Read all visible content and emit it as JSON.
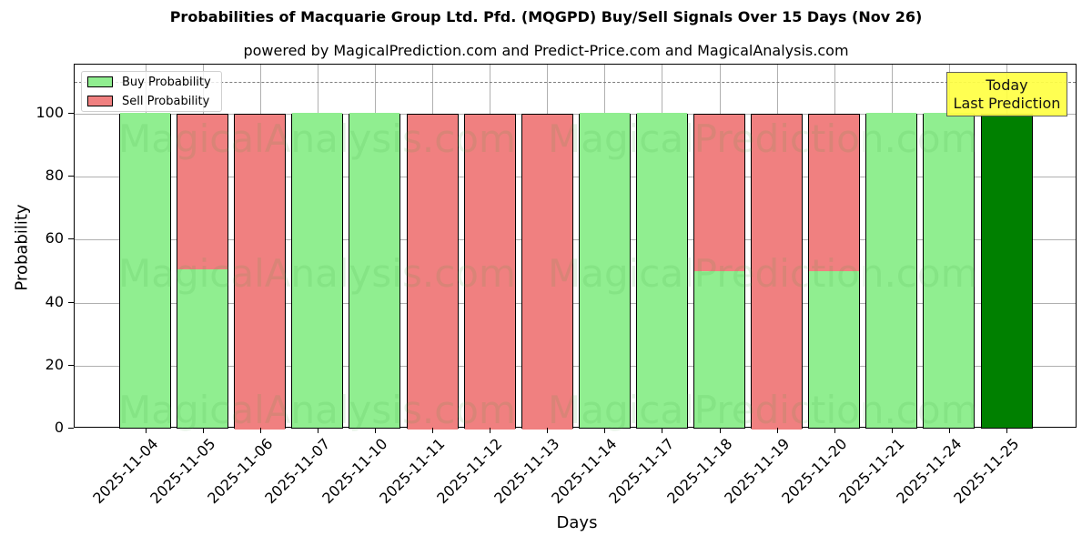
{
  "header": {
    "title": "Probabilities of Macquarie Group Ltd. Pfd. (MQGPD) Buy/Sell Signals Over 15 Days (Nov 26)",
    "subtitle": "powered by MagicalPrediction.com and Predict-Price.com and MagicalAnalysis.com"
  },
  "legend": {
    "buy_label": "Buy Probability",
    "sell_label": "Sell Probability"
  },
  "annotation": {
    "line1": "Today",
    "line2": "Last Prediction"
  },
  "axes": {
    "xlabel": "Days",
    "ylabel": "Probability",
    "yticks": [
      "0",
      "20",
      "40",
      "60",
      "80",
      "100"
    ]
  },
  "watermarks": [
    "MagicalAnalysis.com",
    "MagicalPrediction.com"
  ],
  "colors": {
    "buy": "#90ee90",
    "sell": "#f08080",
    "today": "#008000",
    "annotation_bg": "#ffff44",
    "refline": "#7f7f7f"
  },
  "chart_data": {
    "type": "bar",
    "stacked": true,
    "title": "Probabilities of Macquarie Group Ltd. Pfd. (MQGPD) Buy/Sell Signals Over 15 Days (Nov 26)",
    "subtitle": "powered by MagicalPrediction.com and Predict-Price.com and MagicalAnalysis.com",
    "xlabel": "Days",
    "ylabel": "Probability",
    "ylim": [
      0,
      115.6
    ],
    "yticks": [
      0,
      20,
      40,
      60,
      80,
      100
    ],
    "grid": true,
    "legend_position": "upper left",
    "reference_line": {
      "y": 110,
      "style": "dashed",
      "color": "#7f7f7f"
    },
    "annotation": {
      "text": "Today\nLast Prediction",
      "x": "2025-11-25",
      "position": "upper right"
    },
    "categories": [
      "2025-11-04",
      "2025-11-05",
      "2025-11-06",
      "2025-11-07",
      "2025-11-10",
      "2025-11-11",
      "2025-11-12",
      "2025-11-13",
      "2025-11-14",
      "2025-11-17",
      "2025-11-18",
      "2025-11-19",
      "2025-11-20",
      "2025-11-21",
      "2025-11-24",
      "2025-11-25"
    ],
    "series": [
      {
        "name": "Buy Probability",
        "color": "#90ee90",
        "values": [
          100,
          50.2,
          0,
          100,
          100,
          0,
          0,
          0,
          100,
          100,
          49.6,
          0,
          49.6,
          100,
          100,
          100
        ]
      },
      {
        "name": "Sell Probability",
        "color": "#f08080",
        "values": [
          0,
          49.8,
          100,
          0,
          0,
          100,
          100,
          100,
          0,
          0,
          50.4,
          100,
          50.4,
          0,
          0,
          0
        ]
      }
    ],
    "highlight": {
      "category": "2025-11-25",
      "color": "#008000",
      "label": "Today"
    }
  }
}
